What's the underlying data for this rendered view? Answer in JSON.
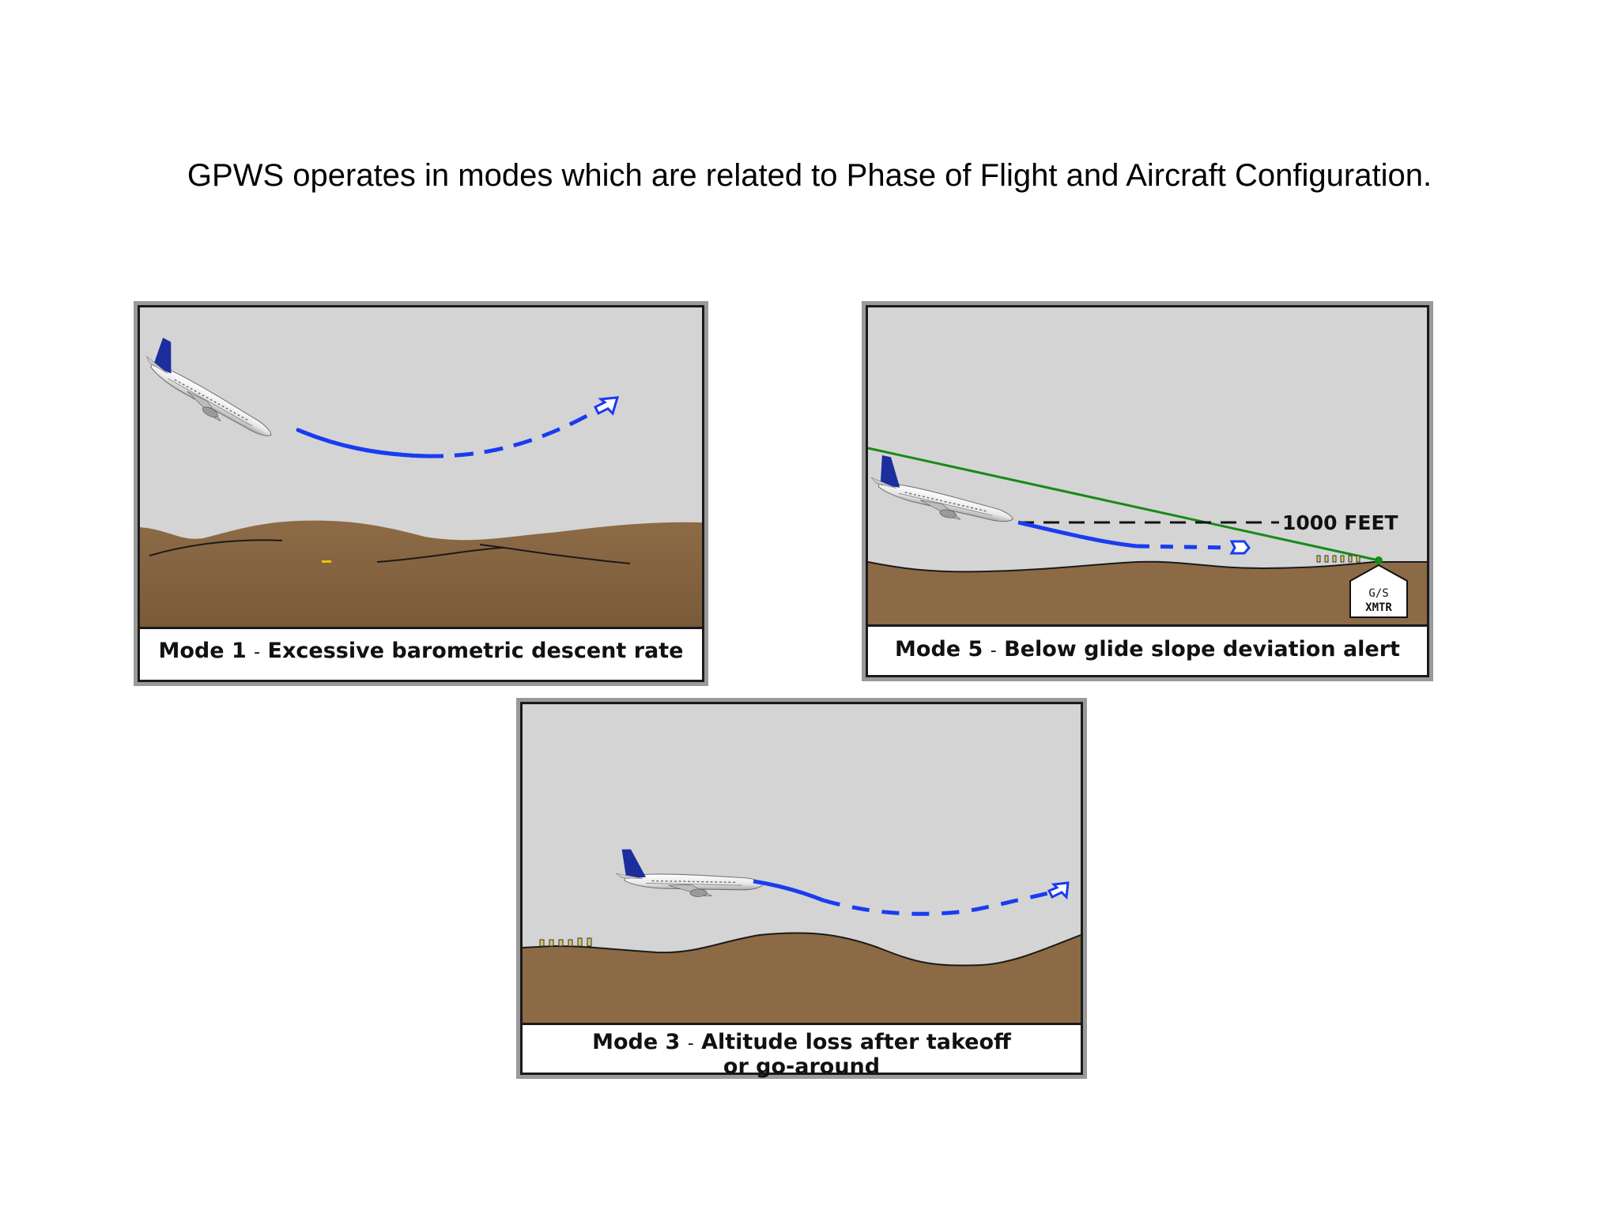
{
  "page": {
    "title": "GPWS operates in modes which are related to Phase of Flight and Aircraft Configuration."
  },
  "panels": [
    {
      "id": "mode1",
      "mode": "Mode 1",
      "separator": "-",
      "description": "Excessive barometric descent rate"
    },
    {
      "id": "mode5",
      "mode": "Mode 5",
      "separator": "-",
      "description": "Below glide slope deviation alert",
      "altitude_label": "1000 FEET",
      "transmitter_label_1": "G/S",
      "transmitter_label_2": "XMTR"
    },
    {
      "id": "mode3",
      "mode": "Mode 3",
      "separator": "-",
      "description": "Altitude loss after takeoff",
      "description_line2": "or go-around"
    }
  ],
  "colors": {
    "sky": "#d4d4d4",
    "terrain": "#8c6a46",
    "flight_path": "#1a3cf0",
    "glide_slope": "#178a17",
    "tail": "#1c2e9c",
    "frame": "#9a9a9a"
  },
  "icons": [
    "airplane-icon",
    "dashed-arrow-icon",
    "transmitter-icon"
  ]
}
